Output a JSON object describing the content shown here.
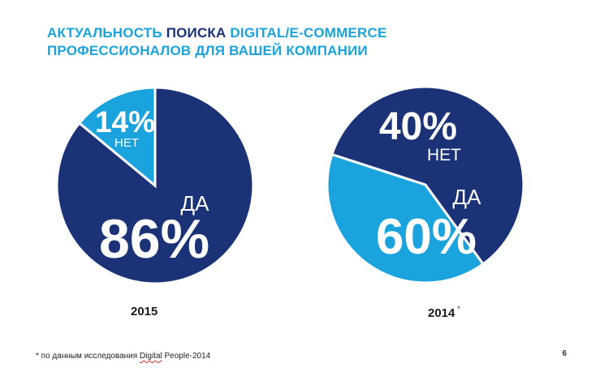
{
  "title": {
    "part1": "АКТУАЛЬНОСТЬ",
    "part2": "ПОИСКА",
    "part3": "DIGITAL/E-COMMERCE",
    "line2": "ПРОФЕССИОНАЛОВ ДЛЯ ВАШЕЙ КОМПАНИИ"
  },
  "colors": {
    "primary_dark": "#1b3277",
    "accent_light": "#1aa3dc",
    "label_white": "#ffffff"
  },
  "chart_data": [
    {
      "type": "pie",
      "year": "2015",
      "slices": [
        {
          "label": "ДА",
          "value": 86,
          "display": "86%",
          "color": "#1b3277"
        },
        {
          "label": "НЕТ",
          "value": 14,
          "display": "14%",
          "color": "#1aa3dc"
        }
      ]
    },
    {
      "type": "pie",
      "year": "2014",
      "year_marker": "*",
      "slices": [
        {
          "label": "ДА",
          "value": 60,
          "display": "60%",
          "color": "#1b3277"
        },
        {
          "label": "НЕТ",
          "value": 40,
          "display": "40%",
          "color": "#1aa3dc"
        }
      ]
    }
  ],
  "footnote": {
    "prefix": "* по данным исследования ",
    "source_word": "Digital",
    "suffix": " People-2014"
  },
  "page_number": "6"
}
